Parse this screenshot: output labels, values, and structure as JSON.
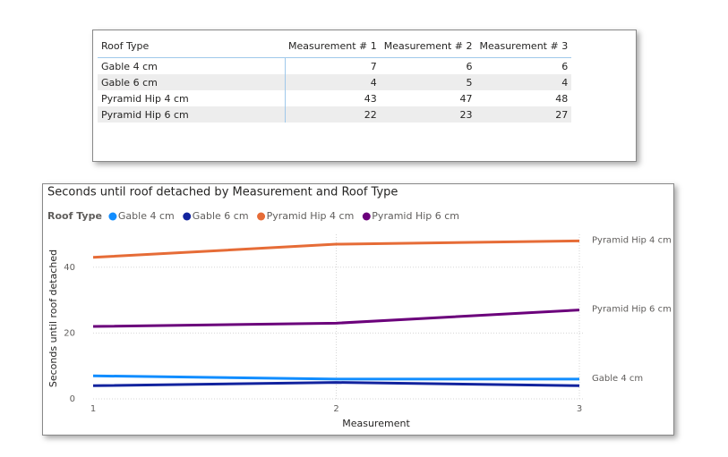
{
  "table": {
    "header": [
      "Roof Type",
      "Measurement # 1",
      "Measurement # 2",
      "Measurement # 3"
    ],
    "rows": [
      [
        "Gable 4 cm",
        7,
        6,
        6
      ],
      [
        "Gable 6 cm",
        4,
        5,
        4
      ],
      [
        "Pyramid Hip 4 cm",
        43,
        47,
        48
      ],
      [
        "Pyramid Hip 6 cm",
        22,
        23,
        27
      ]
    ]
  },
  "chart_data": {
    "type": "line",
    "title": "Seconds until roof detached by Measurement and Roof Type",
    "legend_title": "Roof Type",
    "x_label": "Measurement",
    "y_label": "Seconds until roof detached",
    "x": [
      1,
      2,
      3
    ],
    "xlim": [
      1,
      3
    ],
    "xticks": [
      1,
      2,
      3
    ],
    "ylim": [
      0,
      50
    ],
    "yticks": [
      0,
      20,
      40
    ],
    "grid": true,
    "series": [
      {
        "name": "Gable 4 cm",
        "color": "#118DFF",
        "values": [
          7,
          6,
          6
        ],
        "end_label": true
      },
      {
        "name": "Gable 6 cm",
        "color": "#12239E",
        "values": [
          4,
          5,
          4
        ],
        "end_label": false
      },
      {
        "name": "Pyramid Hip 4 cm",
        "color": "#E66C37",
        "values": [
          43,
          47,
          48
        ],
        "end_label": true
      },
      {
        "name": "Pyramid Hip 6 cm",
        "color": "#6B007B",
        "values": [
          22,
          23,
          27
        ],
        "end_label": true
      }
    ]
  }
}
